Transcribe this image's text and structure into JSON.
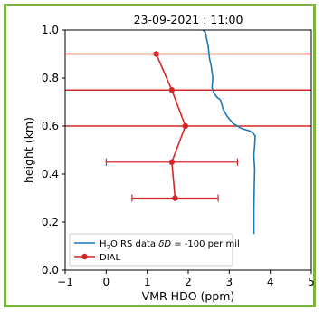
{
  "chart_data": {
    "type": "line",
    "title": "23-09-2021 : 11:00",
    "xlabel": "VMR HDO (ppm)",
    "ylabel": "height (km)",
    "xlim": [
      -1,
      5
    ],
    "ylim": [
      0.0,
      1.0
    ],
    "xticks": [
      "−1",
      "0",
      "1",
      "2",
      "3",
      "4",
      "5"
    ],
    "yticks": [
      "0.0",
      "0.2",
      "0.4",
      "0.6",
      "0.8",
      "1.0"
    ],
    "xtick_values": [
      -1,
      0,
      1,
      2,
      3,
      4,
      5
    ],
    "ytick_values": [
      0.0,
      0.2,
      0.4,
      0.6,
      0.8,
      1.0
    ],
    "grid": false,
    "legend_position": "lower-left",
    "reference_lines": {
      "orientation": "horizontal",
      "y": [
        0.9,
        0.75,
        0.6
      ],
      "color": "#d62728"
    },
    "series": [
      {
        "name": "H₂O RS data δD = -100 per mil",
        "legend_main": "H",
        "legend_sub": "2",
        "legend_rest": "O RS data ",
        "legend_italic": "δD",
        "legend_tail": " = -100 per mil",
        "color": "#1f77b4",
        "marker": "none",
        "x": [
          3.6,
          3.6,
          3.61,
          3.62,
          3.6,
          3.62,
          3.63,
          3.63,
          3.58,
          3.5,
          3.3,
          3.1,
          2.95,
          2.85,
          2.82,
          2.78,
          2.7,
          2.62,
          2.58,
          2.6,
          2.56,
          2.52,
          2.5,
          2.48,
          2.45,
          2.42,
          2.36
        ],
        "y": [
          0.15,
          0.25,
          0.35,
          0.42,
          0.48,
          0.52,
          0.55,
          0.56,
          0.57,
          0.58,
          0.59,
          0.61,
          0.64,
          0.67,
          0.69,
          0.71,
          0.72,
          0.74,
          0.76,
          0.8,
          0.85,
          0.88,
          0.91,
          0.94,
          0.96,
          0.99,
          1.0
        ]
      },
      {
        "name": "DIAL",
        "color": "#d62728",
        "marker": "circle",
        "x": [
          1.68,
          1.6,
          1.93,
          1.6,
          1.22
        ],
        "y": [
          0.3,
          0.45,
          0.6,
          0.75,
          0.9
        ],
        "xerr": [
          1.05,
          1.6,
          0,
          0,
          0
        ]
      }
    ]
  }
}
